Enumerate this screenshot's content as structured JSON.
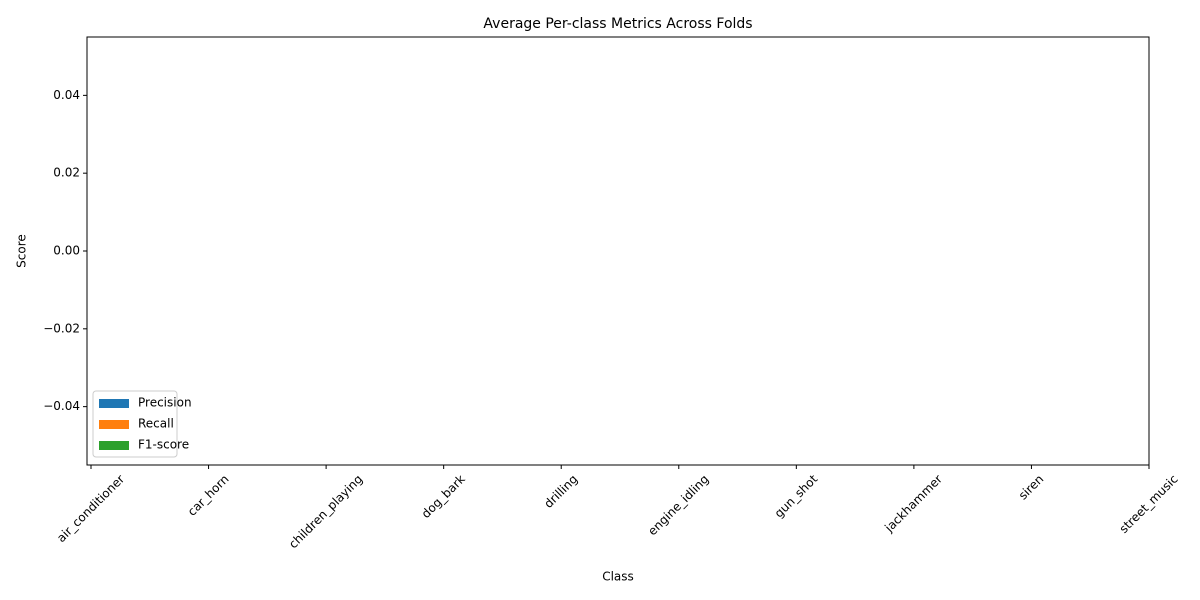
{
  "chart_data": {
    "type": "bar",
    "title": "Average Per-class Metrics Across Folds",
    "x_label": "Class",
    "y_label": "Score",
    "categories": [
      "air_conditioner",
      "car_horn",
      "children_playing",
      "dog_bark",
      "drilling",
      "engine_idling",
      "gun_shot",
      "jackhammer",
      "siren",
      "street_music"
    ],
    "series": [
      {
        "name": "Precision",
        "color": "#1f77b4",
        "values": [
          0,
          0,
          0,
          0,
          0,
          0,
          0,
          0,
          0,
          0
        ]
      },
      {
        "name": "Recall",
        "color": "#ff7f0e",
        "values": [
          0,
          0,
          0,
          0,
          0,
          0,
          0,
          0,
          0,
          0
        ]
      },
      {
        "name": "F1-score",
        "color": "#2ca02c",
        "values": [
          0,
          0,
          0,
          0,
          0,
          0,
          0,
          0,
          0,
          0
        ]
      }
    ],
    "ylim": [
      -0.055,
      0.055
    ],
    "yticks": [
      {
        "value": -0.04,
        "label": "−0.04"
      },
      {
        "value": -0.02,
        "label": "−0.02"
      },
      {
        "value": 0,
        "label": "0.00"
      },
      {
        "value": 0.02,
        "label": "0.02"
      },
      {
        "value": 0.04,
        "label": "0.04"
      }
    ],
    "grid": false,
    "legend": "lower left"
  }
}
